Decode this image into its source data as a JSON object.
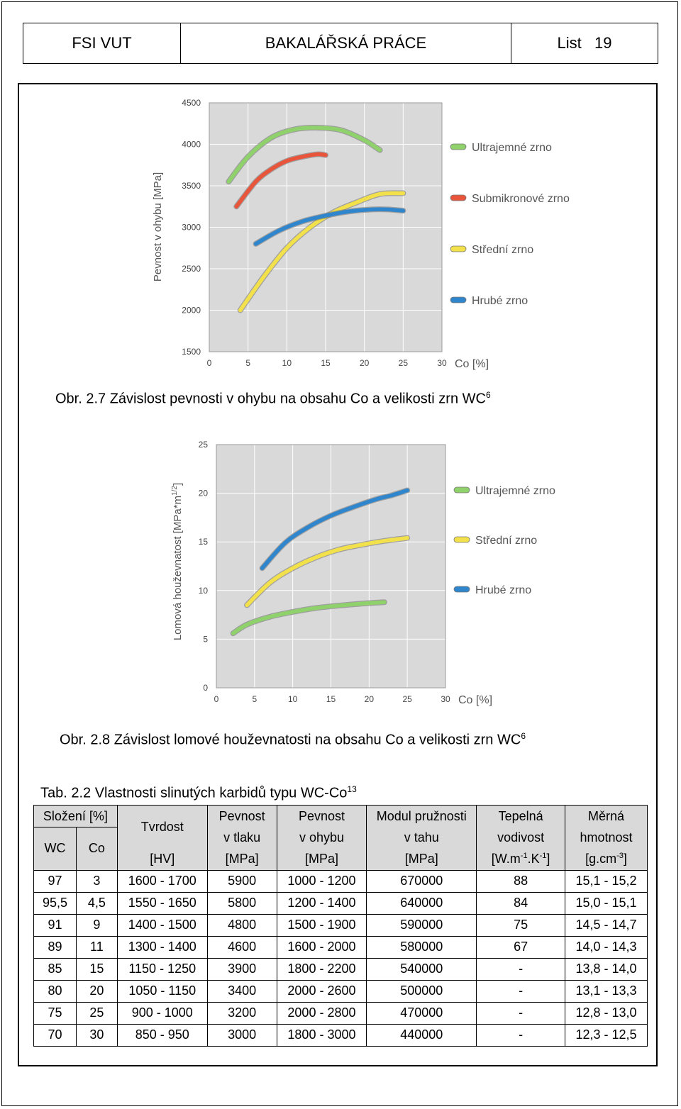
{
  "header": {
    "left": "FSI VUT",
    "center": "BAKALÁŘSKÁ PRÁCE",
    "right": "List   19"
  },
  "figure1": {
    "caption_main": "Obr. 2.7 Závislost pevnosti v ohybu na obsahu Co a velikosti zrn WC",
    "caption_sup": "6"
  },
  "figure2": {
    "caption_main": "Obr. 2.8 Závislost lomové houževnatosti na obsahu Co a velikosti zrn WC",
    "caption_sup": "6"
  },
  "table": {
    "title_main": "Tab. 2.2 Vlastnosti slinutých karbidů typu WC-Co",
    "title_sup": "13",
    "headers": {
      "slozeni": "Složení [%]",
      "wc": "WC",
      "co": "Co",
      "tvrdost": "Tvrdost",
      "tvrdost_unit": "[HV]",
      "pevnost_tlak_1": "Pevnost",
      "pevnost_tlak_2": "v tlaku",
      "pevnost_tlak_unit": "[MPa]",
      "pevnost_ohyb_1": "Pevnost",
      "pevnost_ohyb_2": "v ohybu",
      "pevnost_ohyb_unit": "[MPa]",
      "modul_1": "Modul pružnosti",
      "modul_2": "v tahu",
      "modul_unit": "[MPa]",
      "tepelna_1": "Tepelná",
      "tepelna_2": "vodivost",
      "tepelna_unit_a": "[W.m",
      "tepelna_unit_sup1": "-1",
      "tepelna_unit_b": ".K",
      "tepelna_unit_sup2": "-1",
      "tepelna_unit_c": "]",
      "merna_1": "Měrná",
      "merna_2": "hmotnost",
      "merna_unit_a": "[g.cm",
      "merna_unit_sup": "-3",
      "merna_unit_c": "]"
    },
    "rows": [
      [
        "97",
        "3",
        "1600 - 1700",
        "5900",
        "1000 - 1200",
        "670000",
        "88",
        "15,1 - 15,2"
      ],
      [
        "95,5",
        "4,5",
        "1550 - 1650",
        "5800",
        "1200 - 1400",
        "640000",
        "84",
        "15,0 - 15,1"
      ],
      [
        "91",
        "9",
        "1400 - 1500",
        "4800",
        "1500 - 1900",
        "590000",
        "75",
        "14,5 - 14,7"
      ],
      [
        "89",
        "11",
        "1300 - 1400",
        "4600",
        "1600 - 2000",
        "580000",
        "67",
        "14,0 - 14,3"
      ],
      [
        "85",
        "15",
        "1150 - 1250",
        "3900",
        "1800 - 2200",
        "540000",
        "-",
        "13,8 - 14,0"
      ],
      [
        "80",
        "20",
        "1050 - 1150",
        "3400",
        "2000 - 2600",
        "500000",
        "-",
        "13,1 - 13,3"
      ],
      [
        "75",
        "25",
        "900 - 1000",
        "3200",
        "2000 - 2800",
        "470000",
        "-",
        "12,8 - 13,0"
      ],
      [
        "70",
        "30",
        "850 - 950",
        "3000",
        "1800 - 3000",
        "440000",
        "-",
        "12,3 - 12,5"
      ]
    ]
  },
  "chart_data": [
    {
      "type": "line",
      "xlabel": "Co [%]",
      "ylabel": "Pevnost v ohybu [MPa]",
      "xlim": [
        0,
        30
      ],
      "ylim": [
        1500,
        4500
      ],
      "xticks": [
        "0",
        "5",
        "10",
        "15",
        "20",
        "25",
        "30"
      ],
      "yticks": [
        "1500",
        "2000",
        "2500",
        "3000",
        "3500",
        "4000",
        "4500"
      ],
      "grid": true,
      "legend_position": "right",
      "series": [
        {
          "name": "Ultrajemné zrno",
          "color": "#8fd16a",
          "x": [
            2.5,
            5,
            8,
            11,
            14,
            17,
            20,
            22
          ],
          "y": [
            3550,
            3850,
            4080,
            4180,
            4200,
            4170,
            4050,
            3930
          ]
        },
        {
          "name": "Submikronové zrno",
          "color": "#e8553b",
          "x": [
            3.5,
            6,
            8,
            10,
            12,
            14,
            15
          ],
          "y": [
            3250,
            3550,
            3700,
            3800,
            3850,
            3880,
            3870
          ]
        },
        {
          "name": "Střední zrno",
          "color": "#f2e14a",
          "x": [
            4,
            7,
            10,
            13,
            16,
            19,
            22,
            25
          ],
          "y": [
            2000,
            2400,
            2750,
            3000,
            3180,
            3300,
            3400,
            3410
          ]
        },
        {
          "name": "Hrubé zrno",
          "color": "#2f86cc",
          "x": [
            6,
            9,
            12,
            15,
            18,
            21,
            23,
            25
          ],
          "y": [
            2800,
            2960,
            3070,
            3140,
            3190,
            3215,
            3215,
            3200
          ]
        }
      ]
    },
    {
      "type": "line",
      "xlabel": "Co [%]",
      "ylabel": "Lomová houževnatost [MPa*m",
      "ylabel_sup": "1/2",
      "ylabel_end": "]",
      "xlim": [
        0,
        30
      ],
      "ylim": [
        0,
        25
      ],
      "xticks": [
        "0",
        "5",
        "10",
        "15",
        "20",
        "25",
        "30"
      ],
      "yticks": [
        "0",
        "5",
        "10",
        "15",
        "20",
        "25"
      ],
      "grid": true,
      "legend_position": "right",
      "series": [
        {
          "name": "Ultrajemné zrno",
          "color": "#8fd16a",
          "x": [
            2.2,
            4,
            7,
            10,
            13,
            16,
            19,
            22
          ],
          "y": [
            5.6,
            6.5,
            7.3,
            7.8,
            8.2,
            8.45,
            8.65,
            8.8
          ]
        },
        {
          "name": "Střední zrno",
          "color": "#f2e14a",
          "x": [
            4,
            7,
            10,
            13,
            16,
            19,
            22,
            25
          ],
          "y": [
            8.5,
            10.8,
            12.3,
            13.4,
            14.2,
            14.7,
            15.1,
            15.4
          ]
        },
        {
          "name": "Hrubé zrno",
          "color": "#2f86cc",
          "x": [
            6,
            9,
            12,
            15,
            18,
            21,
            23,
            25
          ],
          "y": [
            12.3,
            14.9,
            16.5,
            17.7,
            18.6,
            19.4,
            19.8,
            20.3
          ]
        }
      ]
    }
  ]
}
